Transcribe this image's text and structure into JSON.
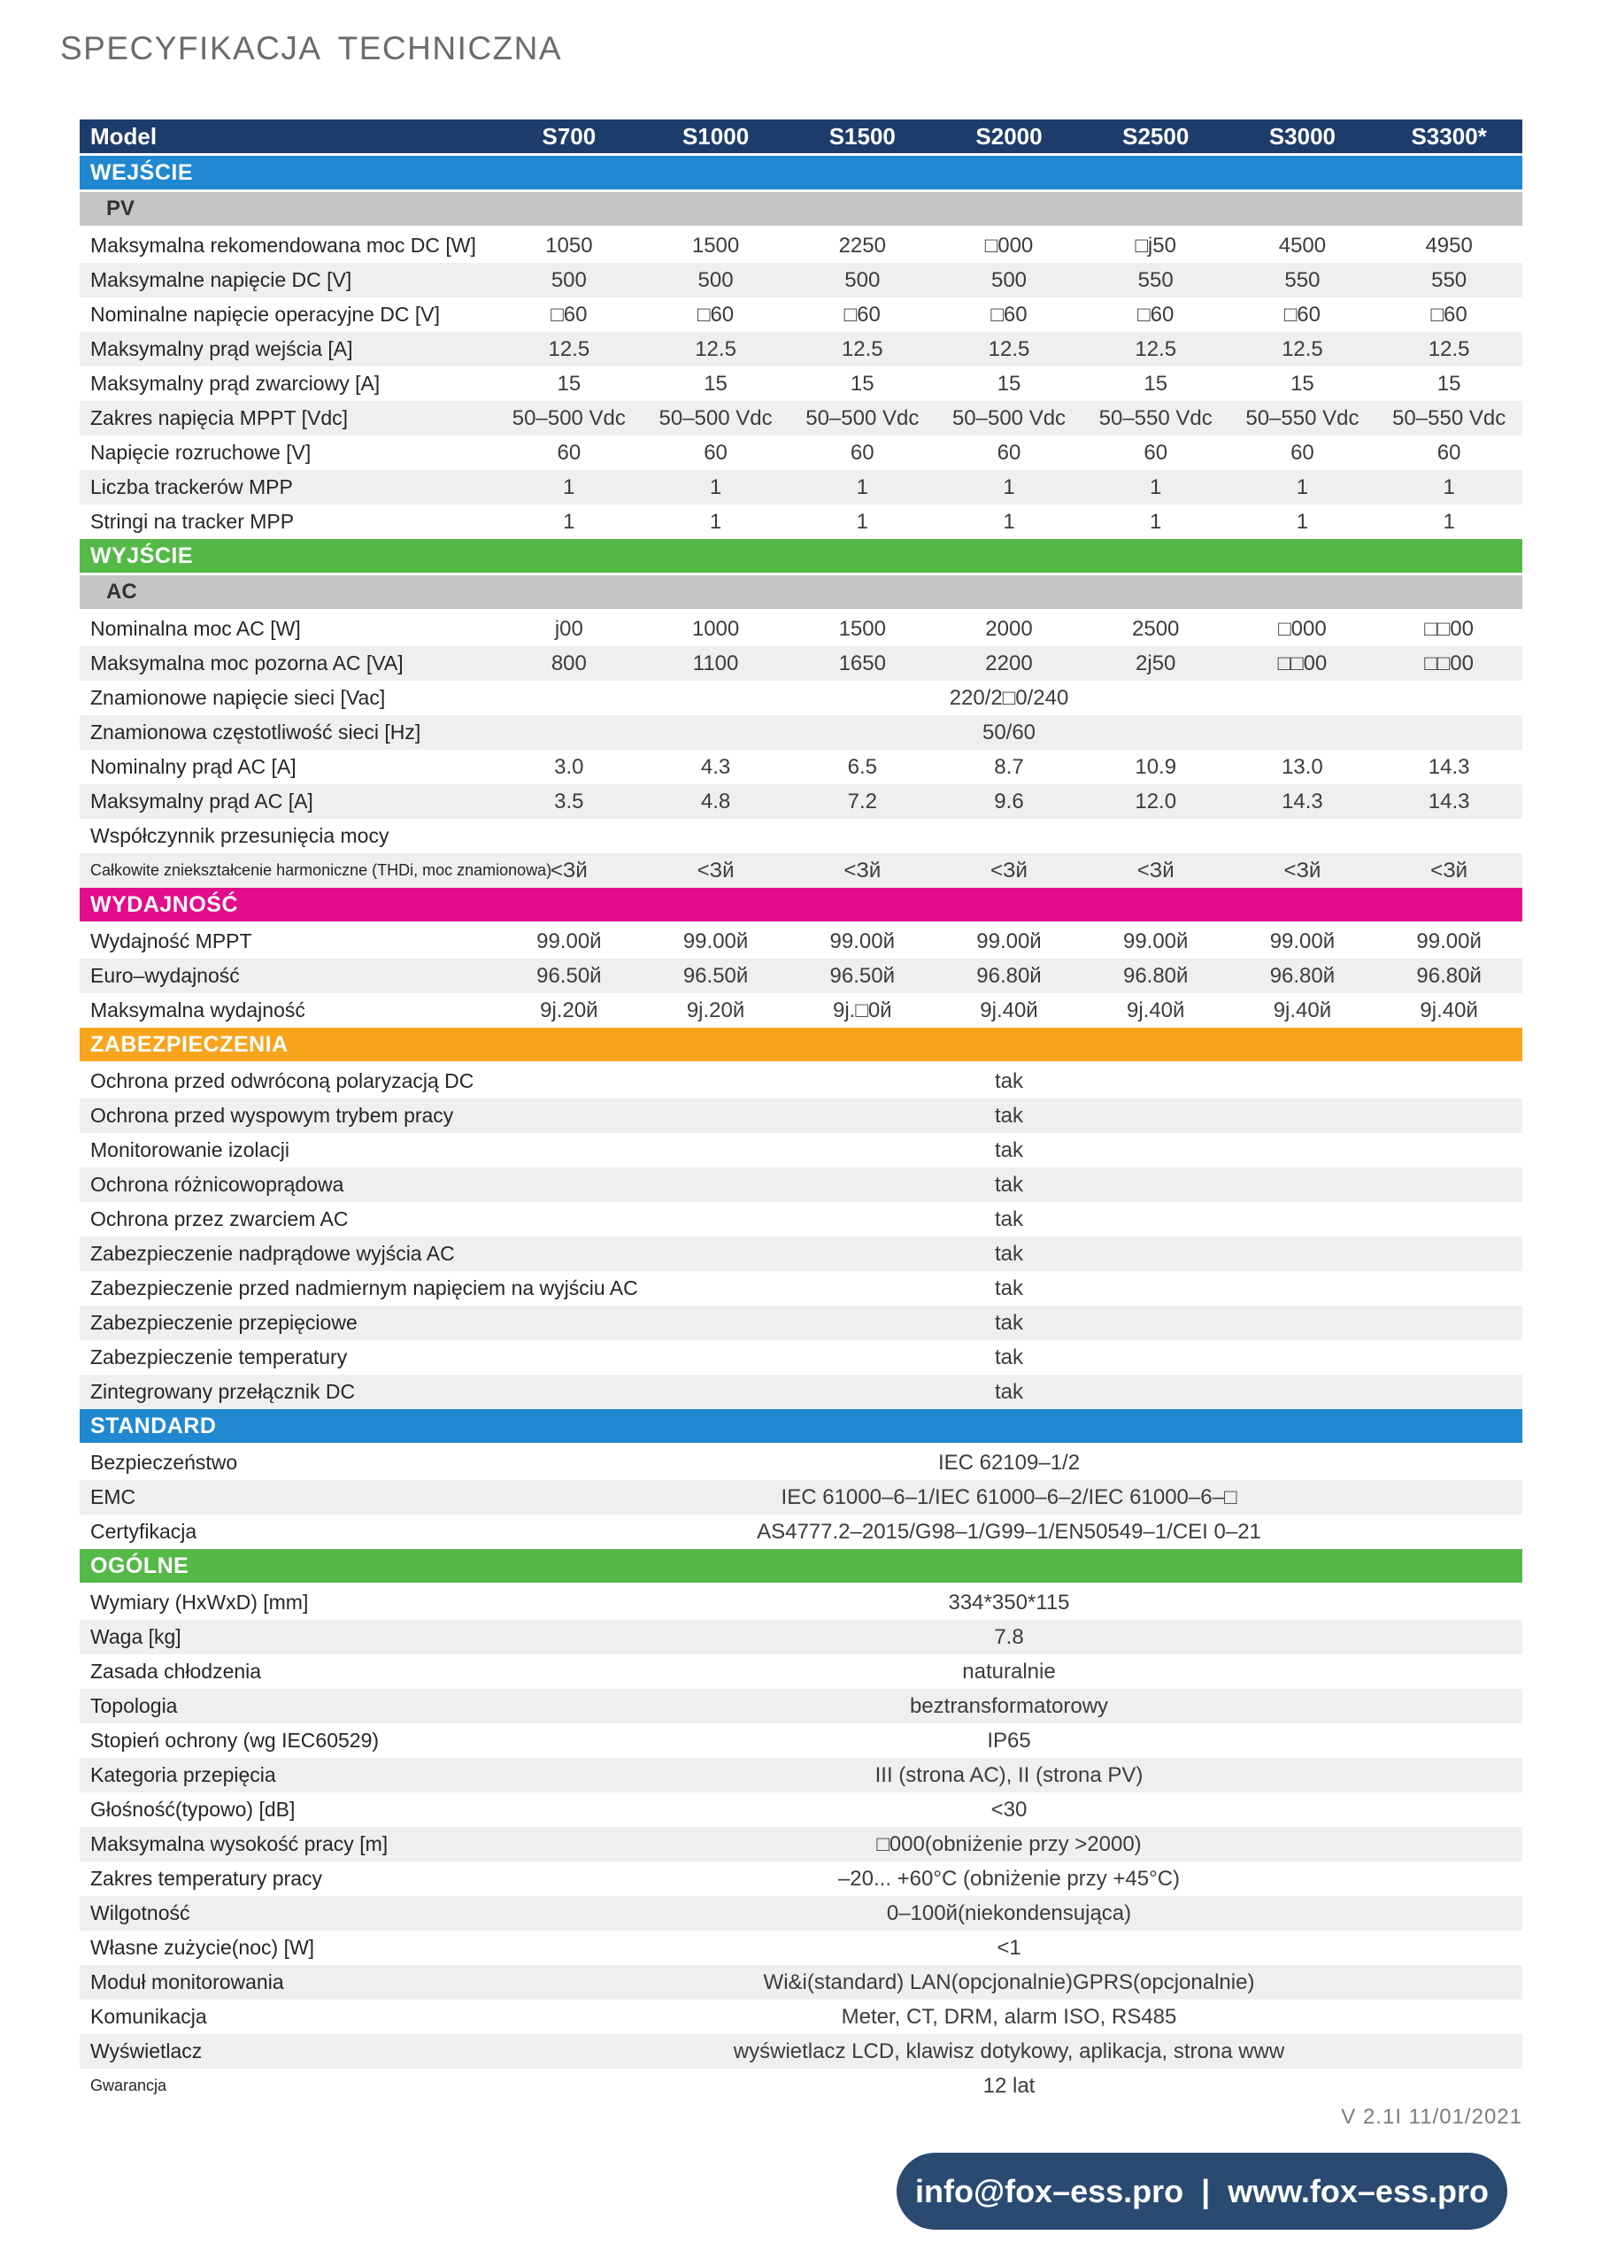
{
  "page": {
    "title": "SPECYFIKACJA TECHNICZNA",
    "version": "V 2.1I 11/01/2021",
    "footer": {
      "email": "info@fox–ess.pro",
      "separator": "|",
      "website": "www.fox–ess.pro"
    }
  },
  "colors": {
    "header_navy": "#1e3c6b",
    "section_blue": "#1f88d1",
    "section_green": "#55b948",
    "section_magenta": "#e30d8b",
    "section_orange": "#f8a41d",
    "subsection_gray": "#c5c5c7",
    "row_alt_gray": "#efefef",
    "footer_navy": "#2a4a72"
  },
  "table": {
    "header": {
      "label": "Model",
      "models": [
        "S700",
        "S1000",
        "S1500",
        "S2000",
        "S2500",
        "S3000",
        "S3300*"
      ]
    },
    "sections": [
      {
        "title": "WEJŚCIE",
        "color": "blue",
        "subsection": "PV",
        "rows": [
          {
            "label": "Maksymalna rekomendowana moc DC [W]",
            "values": [
              "1050",
              "1500",
              "2250",
              "□000",
              "□j50",
              "4500",
              "4950"
            ]
          },
          {
            "label": "Maksymalne napięcie DC [V]",
            "values": [
              "500",
              "500",
              "500",
              "500",
              "550",
              "550",
              "550"
            ]
          },
          {
            "label": "Nominalne napięcie operacyjne DC [V]",
            "values": [
              "□60",
              "□60",
              "□60",
              "□60",
              "□60",
              "□60",
              "□60"
            ]
          },
          {
            "label": "Maksymalny prąd wejścia  [A]",
            "values": [
              "12.5",
              "12.5",
              "12.5",
              "12.5",
              "12.5",
              "12.5",
              "12.5"
            ]
          },
          {
            "label": "Maksymalny prąd zwarciowy [A]",
            "values": [
              "15",
              "15",
              "15",
              "15",
              "15",
              "15",
              "15"
            ]
          },
          {
            "label": "Zakres napięcia MPPT [Vdc]",
            "values": [
              "50–500 Vdc",
              "50–500 Vdc",
              "50–500 Vdc",
              "50–500 Vdc",
              "50–550 Vdc",
              "50–550 Vdc",
              "50–550 Vdc"
            ]
          },
          {
            "label": "Napięcie rozruchowe [V]",
            "values": [
              "60",
              "60",
              "60",
              "60",
              "60",
              "60",
              "60"
            ]
          },
          {
            "label": "Liczba trackerów MPP",
            "values": [
              "1",
              "1",
              "1",
              "1",
              "1",
              "1",
              "1"
            ]
          },
          {
            "label": "Stringi na tracker MPP",
            "values": [
              "1",
              "1",
              "1",
              "1",
              "1",
              "1",
              "1"
            ]
          }
        ]
      },
      {
        "title": "WYJŚCIE",
        "color": "green",
        "subsection": "AC",
        "rows": [
          {
            "label": "Nominalna moc AC [W]",
            "values": [
              "j00",
              "1000",
              "1500",
              "2000",
              "2500",
              "□000",
              "□□00"
            ]
          },
          {
            "label": "Maksymalna moc pozorna AC [VA]",
            "values": [
              "800",
              "1100",
              "1650",
              "2200",
              "2j50",
              "□□00",
              "□□00"
            ]
          },
          {
            "label": "Znamionowe napięcie sieci [Vac]",
            "merged": "220/2□0/240"
          },
          {
            "label": "Znamionowa częstotliwość sieci [Hz]",
            "merged": "50/60"
          },
          {
            "label": "Nominalny prąd AC [A]",
            "values": [
              "3.0",
              "4.3",
              "6.5",
              "8.7",
              "10.9",
              "13.0",
              "14.3"
            ]
          },
          {
            "label": "Maksymalny prąd AC [A]",
            "values": [
              "3.5",
              "4.8",
              "7.2",
              "9.6",
              "12.0",
              "14.3",
              "14.3"
            ]
          },
          {
            "label": "Współczynnik przesunięcia mocy",
            "merged": ""
          },
          {
            "label": "Całkowite zniekształcenie harmoniczne (THDi, moc znamionowa)",
            "small_label": true,
            "values": [
              "<Зй",
              "<Зй",
              "<Зй",
              "<Зй",
              "<Зй",
              "<Зй",
              "<Зй"
            ]
          }
        ]
      },
      {
        "title": "WYDAJNOŚĆ",
        "color": "magenta",
        "rows": [
          {
            "label": "Wydajność MPPT",
            "values": [
              "99.00й",
              "99.00й",
              "99.00й",
              "99.00й",
              "99.00й",
              "99.00й",
              "99.00й"
            ]
          },
          {
            "label": "Euro–wydajność",
            "values": [
              "96.50й",
              "96.50й",
              "96.50й",
              "96.80й",
              "96.80й",
              "96.80й",
              "96.80й"
            ]
          },
          {
            "label": "Maksymalna wydajność",
            "values": [
              "9j.20й",
              "9j.20й",
              "9j.□0й",
              "9j.40й",
              "9j.40й",
              "9j.40й",
              "9j.40й"
            ]
          }
        ]
      },
      {
        "title": "ZABEZPIECZENIA",
        "color": "orange",
        "rows": [
          {
            "label": "Ochrona przed odwróconą polaryzacją DC",
            "merged": "tak"
          },
          {
            "label": "Ochrona przed wyspowym trybem pracy",
            "merged": "tak"
          },
          {
            "label": "Monitorowanie  izolacji",
            "merged": "tak"
          },
          {
            "label": "Ochrona różnicowoprądowa",
            "merged": "tak"
          },
          {
            "label": "Ochrona przez zwarciem AC",
            "merged": "tak"
          },
          {
            "label": "Zabezpieczenie nadprądowe wyjścia AC",
            "merged": "tak"
          },
          {
            "label": "Zabezpieczenie przed nadmiernym napięciem na wyjściu AC",
            "merged": "tak"
          },
          {
            "label": "Zabezpieczenie przepięciowe",
            "merged": "tak"
          },
          {
            "label": "Zabezpieczenie temperatury",
            "merged": "tak"
          },
          {
            "label": "Zintegrowany przełącznik DC",
            "merged": "tak"
          }
        ]
      },
      {
        "title": "STANDARD",
        "color": "blue",
        "rows": [
          {
            "label": "Bezpieczeństwo",
            "merged": "IEC 62109–1/2"
          },
          {
            "label": "EMC",
            "merged": "IEC 61000–6–1/IEC 61000–6–2/IEC 61000–6–□"
          },
          {
            "label": "Certyfikacja",
            "merged": "AS4777.2–2015/G98–1/G99–1/EN50549–1/CEI 0–21"
          }
        ]
      },
      {
        "title": "OGÓLNE",
        "color": "green",
        "rows": [
          {
            "label": "Wymiary (HxWxD) [mm]",
            "merged": "334*350*115"
          },
          {
            "label": "Waga [kg]",
            "merged": "7.8"
          },
          {
            "label": "Zasada chłodzenia",
            "merged": "naturalnie"
          },
          {
            "label": "Topologia",
            "merged": "beztransformatorowy"
          },
          {
            "label": "Stopień ochrony (wg IEC60529)",
            "merged": "IP65"
          },
          {
            "label": "Kategoria przepięcia",
            "merged": "III (strona AC), II (strona PV)"
          },
          {
            "label": "Głośność(typowo) [dB]",
            "merged": "<30"
          },
          {
            "label": "Maksymalna wysokość pracy [m]",
            "merged": "□000(obniżenie  przy >2000)"
          },
          {
            "label": "Zakres temperatury pracy",
            "merged": "–20... +60°C (obniżenie  przy +45°C)"
          },
          {
            "label": "Wilgotność",
            "merged": "0–100й(niekondensująca)"
          },
          {
            "label": "Własne zużycie(noc) [W]",
            "merged": "<1"
          },
          {
            "label": "Moduł monitorowania",
            "merged": "Wi&i(standard)  LAN(opcjonalnie)GPRS(opcjonalnie)"
          },
          {
            "label": "Komunikacja",
            "merged": "Meter,  CT, DRM, alarm ISO, RS485"
          },
          {
            "label": "Wyświetlacz",
            "merged": "wyświetlacz LCD, klawisz dotykowy, aplikacja,  strona www"
          },
          {
            "label": "Gwarancja",
            "small_label": true,
            "merged": "12 lat"
          }
        ]
      }
    ]
  }
}
